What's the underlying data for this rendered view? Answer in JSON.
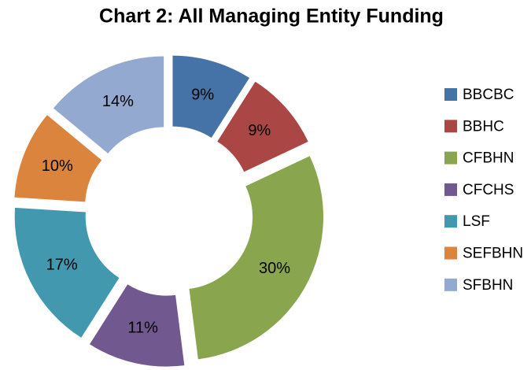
{
  "chart_data": {
    "type": "pie",
    "title": "Chart 2: All Managing Entity Funding",
    "categories": [
      "BBCBC",
      "BBHC",
      "CFBHN",
      "CFCHS",
      "LSF",
      "SEFBHN",
      "SFBHN"
    ],
    "values": [
      9,
      9,
      30,
      11,
      17,
      10,
      14
    ],
    "value_labels": [
      "9%",
      "9%",
      "30%",
      "11%",
      "17%",
      "10%",
      "14%"
    ],
    "colors": [
      "#4572a7",
      "#aa4643",
      "#89a54e",
      "#71588f",
      "#4198af",
      "#db843d",
      "#93a9cf"
    ],
    "legend": "right"
  }
}
